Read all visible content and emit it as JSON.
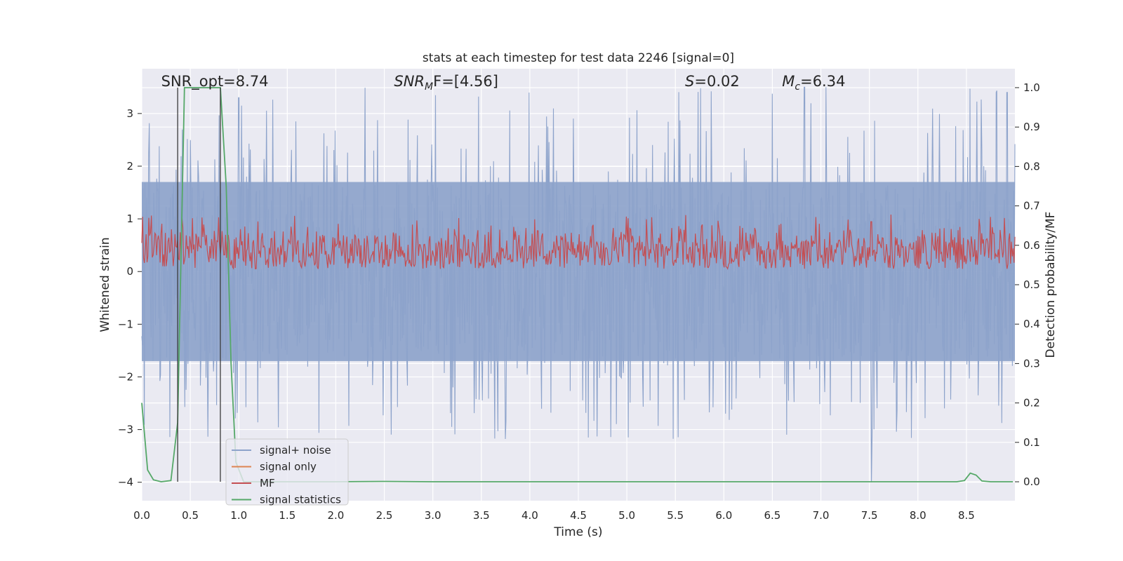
{
  "chart_data": {
    "type": "line",
    "title": "stats at each timestep for test data 2246 [signal=0]",
    "xlabel": "Time (s)",
    "ylabel": "Whitened strain",
    "y2label": "Detection probability/MF",
    "xlim": [
      0.0,
      9.0
    ],
    "ylim": [
      -4.35,
      3.85
    ],
    "y2lim": [
      -0.048,
      1.048
    ],
    "x_ticks": [
      "0.0",
      "0.5",
      "1.0",
      "1.5",
      "2.0",
      "2.5",
      "3.0",
      "3.5",
      "4.0",
      "4.5",
      "5.0",
      "5.5",
      "6.0",
      "6.5",
      "7.0",
      "7.5",
      "8.0",
      "8.5"
    ],
    "y_ticks": [
      "−4",
      "−3",
      "−2",
      "−1",
      "0",
      "1",
      "2",
      "3"
    ],
    "y2_ticks": [
      "0.0",
      "0.1",
      "0.2",
      "0.3",
      "0.4",
      "0.5",
      "0.6",
      "0.7",
      "0.8",
      "0.9",
      "1.0"
    ],
    "grid": true,
    "legend_position": "lower-left",
    "annotations": [
      {
        "text": "SNR_opt=8.74",
        "x": 0.2
      },
      {
        "text_prefix": "SNR",
        "text_sub": "M",
        "text_suffix": "F=[4.56]",
        "x": 2.6
      },
      {
        "text_prefix": "S",
        "text_sub": "",
        "text_suffix": "=0.02",
        "x": 5.6
      },
      {
        "text_prefix": "M",
        "text_sub": "c",
        "text_suffix": "=6.34",
        "x": 6.6
      }
    ],
    "vertical_lines": [
      0.37,
      0.81
    ],
    "series": [
      {
        "name": "signal+ noise",
        "color": "#8da3cb",
        "axis": "left",
        "band": {
          "core_low": -1.7,
          "core_high": 1.7,
          "spike_min": -3.2,
          "spike_max": 3.5
        },
        "spikes": [
          [
            7.52,
            -4.0
          ],
          [
            6.83,
            3.5
          ],
          [
            8.92,
            3.4
          ],
          [
            1.0,
            3.3
          ]
        ]
      },
      {
        "name": "signal only",
        "color": "#dd8452",
        "axis": "left",
        "values": []
      },
      {
        "name": "MF",
        "color": "#c44e52",
        "axis": "right",
        "band": {
          "low": 0.54,
          "high": 0.66,
          "spike_max": 0.7
        },
        "spikes": [
          [
            7.52,
            0.66
          ],
          [
            8.78,
            0.63
          ],
          [
            3.6,
            0.65
          ]
        ]
      },
      {
        "name": "signal statistics",
        "color": "#55a868",
        "axis": "right",
        "points": [
          [
            0.0,
            0.2
          ],
          [
            0.06,
            0.03
          ],
          [
            0.12,
            0.005
          ],
          [
            0.2,
            0.0
          ],
          [
            0.3,
            0.003
          ],
          [
            0.37,
            0.15
          ],
          [
            0.44,
            1.0
          ],
          [
            0.52,
            1.0
          ],
          [
            0.6,
            1.0
          ],
          [
            0.67,
            1.0
          ],
          [
            0.73,
            1.0
          ],
          [
            0.81,
            1.0
          ],
          [
            0.87,
            0.75
          ],
          [
            0.92,
            0.3
          ],
          [
            0.97,
            0.05
          ],
          [
            1.05,
            0.0
          ],
          [
            1.3,
            0.0
          ],
          [
            2.0,
            0.0
          ],
          [
            2.5,
            0.001
          ],
          [
            3.0,
            0.0
          ],
          [
            8.4,
            0.0
          ],
          [
            8.48,
            0.003
          ],
          [
            8.54,
            0.022
          ],
          [
            8.6,
            0.017
          ],
          [
            8.66,
            0.002
          ],
          [
            8.75,
            0.0
          ],
          [
            8.98,
            0.0
          ]
        ]
      }
    ]
  }
}
